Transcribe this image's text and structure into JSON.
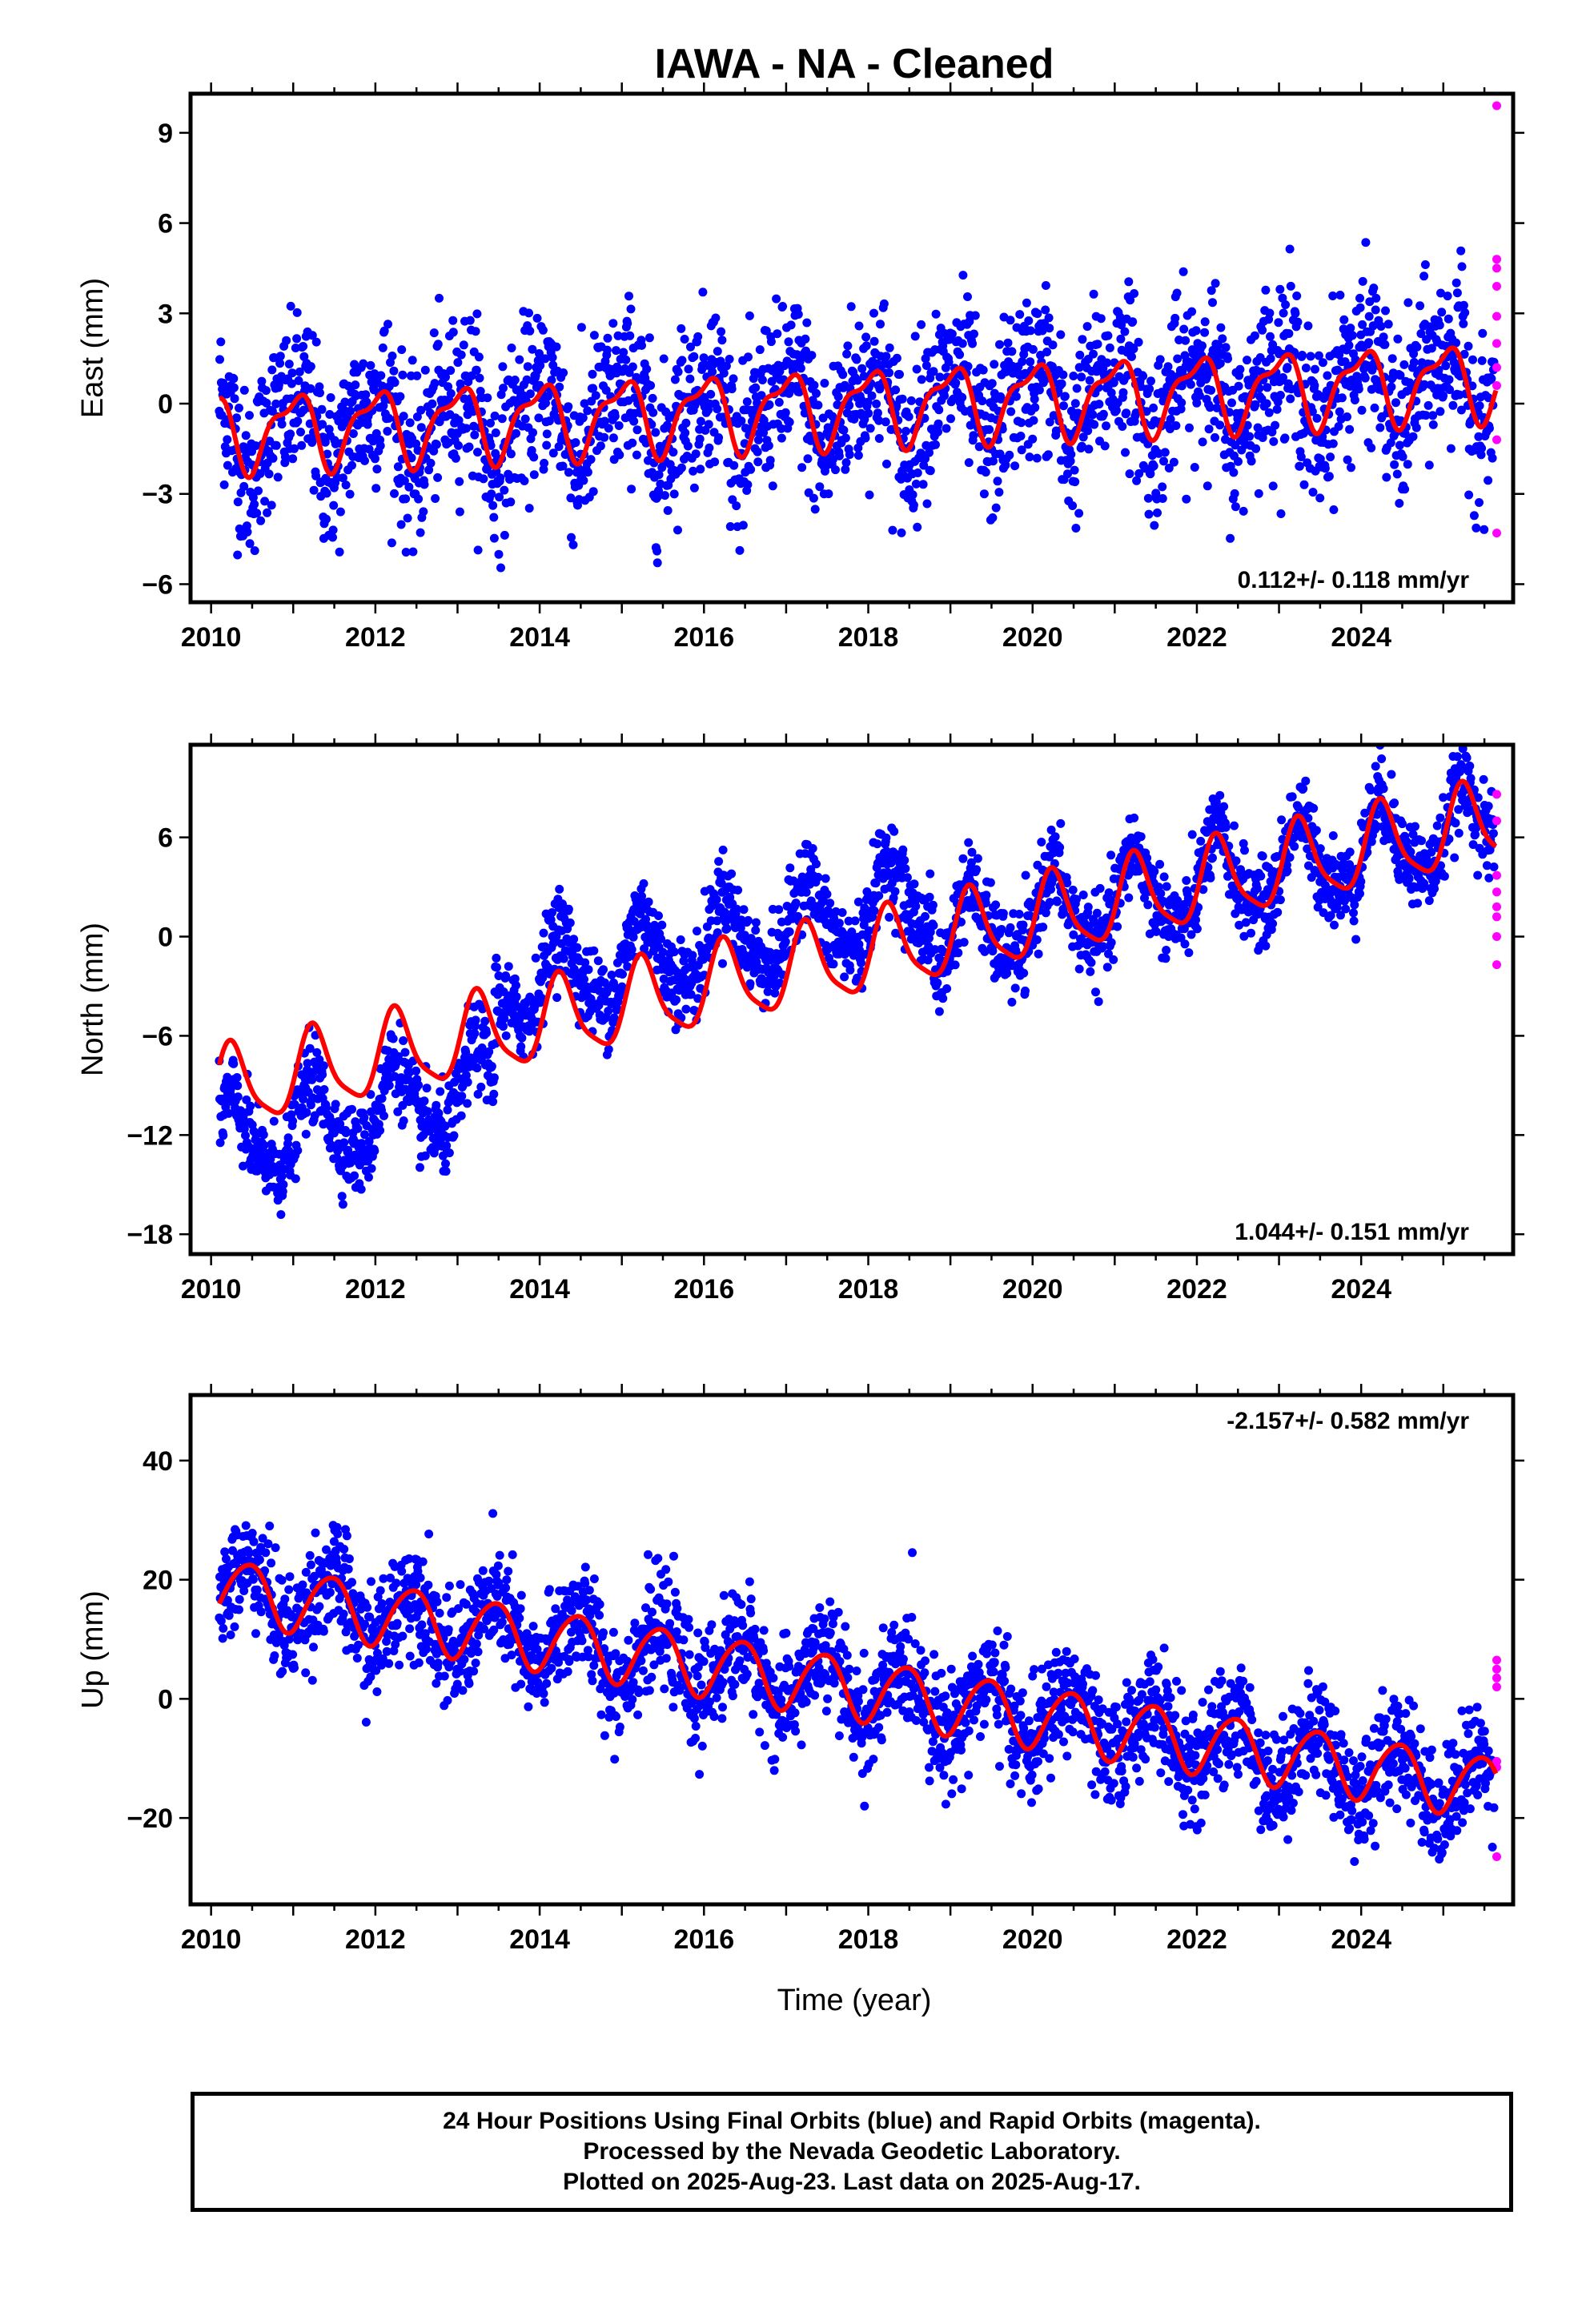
{
  "chart_data": {
    "type": "scatter",
    "title": "IAWA  - NA - Cleaned",
    "colors": {
      "final_orbits": "#0000ff",
      "rapid_orbits": "#ff00ff",
      "model_fit": "#ff0000",
      "frame": "#000000"
    },
    "x_axis": {
      "label": "Time (year)",
      "range": [
        2009.75,
        2025.85
      ],
      "ticks": [
        2010,
        2012,
        2014,
        2016,
        2018,
        2020,
        2022,
        2024
      ],
      "tick_labels": [
        "2010",
        "2012",
        "2014",
        "2016",
        "2018",
        "2020",
        "2022",
        "2024"
      ],
      "minor_tick_step": 0.5
    },
    "panels": [
      {
        "name": "east",
        "ylabel": "East (mm)",
        "ylim": [
          -6.6,
          10.3
        ],
        "yticks": [
          9,
          6,
          3,
          0,
          -3,
          -6
        ],
        "ytick_labels": [
          "9",
          "6",
          "3",
          "0",
          "−3",
          "−6"
        ],
        "rate_text": "0.112+/- 0.118 mm/yr",
        "rate_position": "bottom-right",
        "model": {
          "base": -0.95,
          "slope": 0.112,
          "annual_amp": 1.15,
          "annual_phase": 4.7,
          "semiannual_amp": 0.45,
          "semiannual_phase": 0.8,
          "offsets": []
        },
        "scatter": {
          "sigma": 1.35,
          "step_years": 0.006
        },
        "rapid_points": [
          9.9,
          4.8,
          4.5,
          3.9,
          2.9,
          2.0,
          1.2,
          0.6,
          -1.2,
          -4.3
        ]
      },
      {
        "name": "north",
        "ylabel": "North (mm)",
        "ylim": [
          -19.2,
          11.6
        ],
        "yticks": [
          6,
          0,
          -6,
          -12,
          -18
        ],
        "ytick_labels": [
          "6",
          "0",
          "−6",
          "−12",
          "−18"
        ],
        "rate_text": "1.044+/- 0.151 mm/yr",
        "rate_position": "bottom-right",
        "model": {
          "base": -9.3,
          "slope": 1.044,
          "annual_amp": 2.4,
          "annual_phase": 0.0,
          "semiannual_amp": 0.55,
          "semiannual_phase": 1.0,
          "offsets": []
        },
        "data_offsets": [
          {
            "until": 2013.45,
            "shift": -3.4
          },
          {
            "until": 2018.8,
            "shift": 2.6
          },
          {
            "until": 2025.85,
            "shift": 0.0
          }
        ],
        "scatter": {
          "sigma": 1.25,
          "step_years": 0.006
        },
        "rapid_points": [
          8.6,
          7.0,
          3.7,
          2.7,
          1.8,
          1.2,
          0.0,
          -1.7
        ]
      },
      {
        "name": "up",
        "ylabel": "Up (mm)",
        "ylim": [
          -34.5,
          51.0
        ],
        "yticks": [
          40,
          20,
          0,
          -20
        ],
        "ytick_labels": [
          "40",
          "20",
          "0",
          "−20"
        ],
        "rate_text": "-2.157+/- 0.582 mm/yr",
        "rate_position": "top-right",
        "model": {
          "base": 18.5,
          "slope": -2.157,
          "annual_amp": 5.2,
          "annual_phase": 1.25,
          "semiannual_amp": 0.6,
          "semiannual_phase": 0.3,
          "offsets": []
        },
        "scatter": {
          "sigma": 4.6,
          "step_years": 0.006
        },
        "rapid_points": [
          6.5,
          5.0,
          3.5,
          2.0,
          -10.5,
          -11.5,
          -26.5
        ]
      }
    ]
  },
  "footer": {
    "line1": "24 Hour Positions Using Final Orbits (blue) and Rapid Orbits (magenta).",
    "line2": "Processed by the Nevada Geodetic Laboratory.",
    "line3": "Plotted on 2025-Aug-23. Last data on 2025-Aug-17."
  }
}
